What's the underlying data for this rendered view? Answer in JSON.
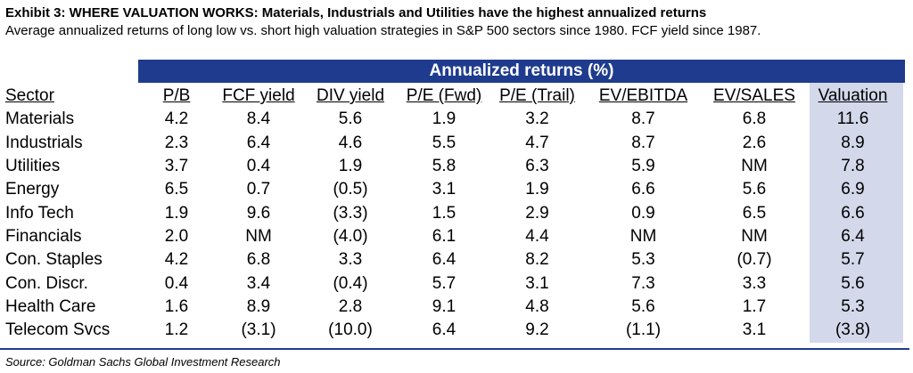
{
  "title": "Exhibit 3: WHERE VALUATION WORKS: Materials, Industrials and Utilities have the highest annualized returns",
  "subtitle": "Average annualized returns of long low vs. short high valuation strategies in S&P 500 sectors since 1980. FCF yield since 1987.",
  "banner": "Annualized returns (%)",
  "colors": {
    "banner_bg": "#1f3b8e",
    "valuation_column_bg": "#d3d8eb"
  },
  "headers": {
    "sector": "Sector",
    "pb": "P/B",
    "fcf": "FCF yield",
    "div": "DIV yield",
    "pe_fwd": "P/E (Fwd)",
    "pe_trail": "P/E (Trail)",
    "ev_ebitda": "EV/EBITDA",
    "ev_sales": "EV/SALES",
    "valuation": "Valuation"
  },
  "rows": [
    {
      "sector": "Materials",
      "pb": "4.2",
      "fcf": "8.4",
      "div": "5.6",
      "pe_fwd": "1.9",
      "pe_trail": "3.2",
      "ev_ebitda": "8.7",
      "ev_sales": "6.8",
      "valuation": "11.6"
    },
    {
      "sector": "Industrials",
      "pb": "2.3",
      "fcf": "6.4",
      "div": "4.6",
      "pe_fwd": "5.5",
      "pe_trail": "4.7",
      "ev_ebitda": "8.7",
      "ev_sales": "2.6",
      "valuation": "8.9"
    },
    {
      "sector": "Utilities",
      "pb": "3.7",
      "fcf": "0.4",
      "div": "1.9",
      "pe_fwd": "5.8",
      "pe_trail": "6.3",
      "ev_ebitda": "5.9",
      "ev_sales": "NM",
      "valuation": "7.8"
    },
    {
      "sector": "Energy",
      "pb": "6.5",
      "fcf": "0.7",
      "div": "(0.5)",
      "pe_fwd": "3.1",
      "pe_trail": "1.9",
      "ev_ebitda": "6.6",
      "ev_sales": "5.6",
      "valuation": "6.9"
    },
    {
      "sector": "Info Tech",
      "pb": "1.9",
      "fcf": "9.6",
      "div": "(3.3)",
      "pe_fwd": "1.5",
      "pe_trail": "2.9",
      "ev_ebitda": "0.9",
      "ev_sales": "6.5",
      "valuation": "6.6"
    },
    {
      "sector": "Financials",
      "pb": "2.0",
      "fcf": "NM",
      "div": "(4.0)",
      "pe_fwd": "6.1",
      "pe_trail": "4.4",
      "ev_ebitda": "NM",
      "ev_sales": "NM",
      "valuation": "6.4"
    },
    {
      "sector": "Con. Staples",
      "pb": "4.2",
      "fcf": "6.8",
      "div": "3.3",
      "pe_fwd": "6.4",
      "pe_trail": "8.2",
      "ev_ebitda": "5.3",
      "ev_sales": "(0.7)",
      "valuation": "5.7"
    },
    {
      "sector": "Con. Discr.",
      "pb": "0.4",
      "fcf": "3.4",
      "div": "(0.4)",
      "pe_fwd": "5.7",
      "pe_trail": "3.1",
      "ev_ebitda": "7.3",
      "ev_sales": "3.3",
      "valuation": "5.6"
    },
    {
      "sector": "Health Care",
      "pb": "1.6",
      "fcf": "8.9",
      "div": "2.8",
      "pe_fwd": "9.1",
      "pe_trail": "4.8",
      "ev_ebitda": "5.6",
      "ev_sales": "1.7",
      "valuation": "5.3"
    },
    {
      "sector": "Telecom Svcs",
      "pb": "1.2",
      "fcf": "(3.1)",
      "div": "(10.0)",
      "pe_fwd": "6.4",
      "pe_trail": "9.2",
      "ev_ebitda": "(1.1)",
      "ev_sales": "3.1",
      "valuation": "(3.8)"
    }
  ],
  "source": "Source: Goldman Sachs Global Investment Research"
}
